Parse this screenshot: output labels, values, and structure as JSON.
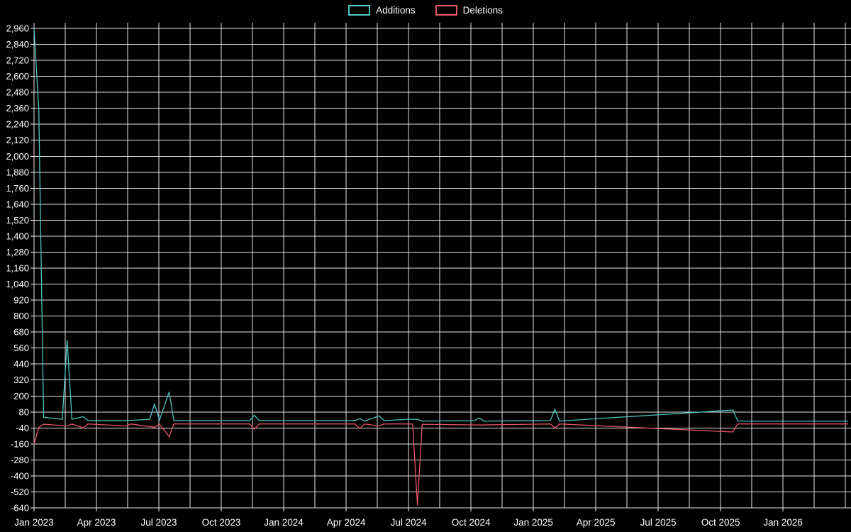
{
  "legend": {
    "additions_label": "Additions",
    "deletions_label": "Deletions"
  },
  "colors": {
    "background": "#000000",
    "grid": "#f0f0f0",
    "text": "#ffffff",
    "additions": "#4fc6c1",
    "deletions": "#e8566b"
  },
  "chart_data": {
    "type": "line",
    "title": "",
    "grid": true,
    "legend_position": "top-center",
    "x_axis": {
      "labels": [
        "Jan 2023",
        "Apr 2023",
        "Jul 2023",
        "Oct 2023",
        "Jan 2024",
        "Apr 2024",
        "Jul 2024",
        "Oct 2024",
        "Jan 2025",
        "Apr 2025",
        "Jul 2025",
        "Oct 2025",
        "Jan 2026"
      ],
      "label_month_offsets": [
        0,
        3,
        6,
        9,
        12,
        15,
        18,
        21,
        24,
        27,
        30,
        33,
        36
      ],
      "range_months": [
        0,
        39.2
      ]
    },
    "y_axis": {
      "min": -640,
      "max": 2960,
      "tick_step": 120,
      "tick_labels": [
        "-640",
        "-520",
        "-400",
        "-280",
        "-160",
        "-40",
        "80",
        "200",
        "320",
        "440",
        "560",
        "680",
        "800",
        "920",
        "1,040",
        "1,160",
        "1,280",
        "1,400",
        "1,520",
        "1,640",
        "1,760",
        "1,880",
        "2,000",
        "2,120",
        "2,240",
        "2,360",
        "2,480",
        "2,600",
        "2,720",
        "2,840",
        "2,960"
      ]
    },
    "series": [
      {
        "name": "Additions",
        "color": "#4fc6c1",
        "points": [
          [
            "2023-01-01",
            2960
          ],
          [
            "2023-01-08",
            2350
          ],
          [
            "2023-01-15",
            40
          ],
          [
            "2023-02-12",
            25
          ],
          [
            "2023-02-19",
            620
          ],
          [
            "2023-02-26",
            25
          ],
          [
            "2023-03-12",
            45
          ],
          [
            "2023-03-19",
            15
          ],
          [
            "2023-05-14",
            15
          ],
          [
            "2023-06-18",
            25
          ],
          [
            "2023-06-25",
            140
          ],
          [
            "2023-07-02",
            20
          ],
          [
            "2023-07-16",
            230
          ],
          [
            "2023-07-23",
            15
          ],
          [
            "2023-11-12",
            15
          ],
          [
            "2023-11-19",
            55
          ],
          [
            "2023-11-26",
            15
          ],
          [
            "2024-04-14",
            15
          ],
          [
            "2024-04-21",
            30
          ],
          [
            "2024-04-28",
            12
          ],
          [
            "2024-05-19",
            50
          ],
          [
            "2024-05-26",
            15
          ],
          [
            "2024-06-30",
            25
          ],
          [
            "2024-07-14",
            25
          ],
          [
            "2024-07-21",
            12
          ],
          [
            "2024-10-06",
            15
          ],
          [
            "2024-10-13",
            35
          ],
          [
            "2024-10-20",
            12
          ],
          [
            "2025-01-26",
            15
          ],
          [
            "2025-02-02",
            100
          ],
          [
            "2025-02-09",
            12
          ],
          [
            "2025-10-19",
            95
          ],
          [
            "2025-10-26",
            12
          ],
          [
            "2026-04-05",
            12
          ]
        ]
      },
      {
        "name": "Deletions",
        "color": "#e8566b",
        "points": [
          [
            "2023-01-01",
            -160
          ],
          [
            "2023-01-08",
            -35
          ],
          [
            "2023-01-15",
            -12
          ],
          [
            "2023-02-19",
            -25
          ],
          [
            "2023-02-26",
            -10
          ],
          [
            "2023-03-12",
            -40
          ],
          [
            "2023-03-19",
            -10
          ],
          [
            "2023-05-14",
            -25
          ],
          [
            "2023-05-21",
            -10
          ],
          [
            "2023-06-25",
            -35
          ],
          [
            "2023-07-02",
            -12
          ],
          [
            "2023-07-16",
            -105
          ],
          [
            "2023-07-23",
            -10
          ],
          [
            "2023-11-12",
            -10
          ],
          [
            "2023-11-19",
            -50
          ],
          [
            "2023-11-26",
            -10
          ],
          [
            "2024-04-14",
            -10
          ],
          [
            "2024-04-21",
            -45
          ],
          [
            "2024-04-28",
            -10
          ],
          [
            "2024-05-19",
            -25
          ],
          [
            "2024-05-26",
            -10
          ],
          [
            "2024-07-07",
            -10
          ],
          [
            "2024-07-14",
            -620
          ],
          [
            "2024-07-21",
            -12
          ],
          [
            "2024-10-13",
            -18
          ],
          [
            "2025-01-26",
            -10
          ],
          [
            "2025-02-02",
            -40
          ],
          [
            "2025-02-09",
            -10
          ],
          [
            "2025-10-19",
            -70
          ],
          [
            "2025-10-26",
            -10
          ],
          [
            "2026-04-05",
            -10
          ]
        ]
      }
    ]
  }
}
